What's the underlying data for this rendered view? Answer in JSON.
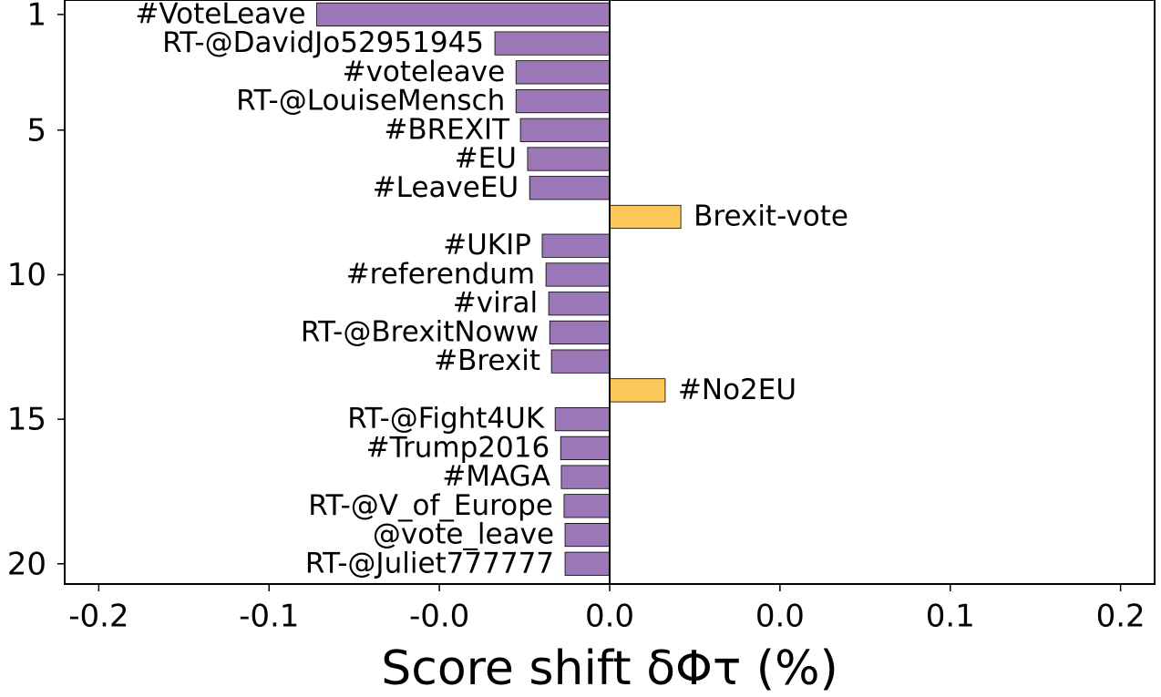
{
  "chart_data": {
    "type": "barh",
    "xlabel": "Score shift δΦτ (%)",
    "categories": [
      "#VoteLeave",
      "RT-@DavidJo52951945",
      "#voteleave",
      "RT-@LouiseMensch",
      "#BREXIT",
      "#EU",
      "#LeaveEU",
      "Brexit-vote",
      "#UKIP",
      "#referendum",
      "#viral",
      "RT-@BrexitNoww",
      "#Brexit",
      "#No2EU",
      "RT-@Fight4UK",
      "#Trump2016",
      "#MAGA",
      "RT-@V_of_Europe",
      "@vote_leave",
      "RT-@Juliet777777"
    ],
    "ranks": [
      1,
      2,
      3,
      4,
      5,
      6,
      7,
      8,
      9,
      10,
      11,
      12,
      13,
      14,
      15,
      16,
      17,
      18,
      19,
      20
    ],
    "values": [
      -0.086,
      -0.0337,
      -0.0275,
      -0.0275,
      -0.0262,
      -0.0241,
      -0.0235,
      0.0209,
      -0.0198,
      -0.0187,
      -0.0179,
      -0.0176,
      -0.0171,
      0.0163,
      -0.016,
      -0.0144,
      -0.0142,
      -0.0134,
      -0.0131,
      -0.0131
    ],
    "colors": [
      "#9b77b8",
      "#9b77b8",
      "#9b77b8",
      "#9b77b8",
      "#9b77b8",
      "#9b77b8",
      "#9b77b8",
      "#fdc85a",
      "#9b77b8",
      "#9b77b8",
      "#9b77b8",
      "#9b77b8",
      "#9b77b8",
      "#fdc85a",
      "#9b77b8",
      "#9b77b8",
      "#9b77b8",
      "#9b77b8",
      "#9b77b8",
      "#9b77b8"
    ],
    "xlim": [
      -0.16,
      0.16
    ],
    "xticks": [
      {
        "value": -0.15,
        "label": "-0.2"
      },
      {
        "value": -0.1,
        "label": "-0.1"
      },
      {
        "value": -0.05,
        "label": "-0.0"
      },
      {
        "value": 0,
        "label": "0.0"
      },
      {
        "value": 0.05,
        "label": "0.0"
      },
      {
        "value": 0.1,
        "label": "0.1"
      },
      {
        "value": 0.15,
        "label": "0.2"
      }
    ],
    "ylim": [
      0.5,
      20.7
    ],
    "yticks": [
      1,
      5,
      10,
      15,
      20
    ]
  }
}
